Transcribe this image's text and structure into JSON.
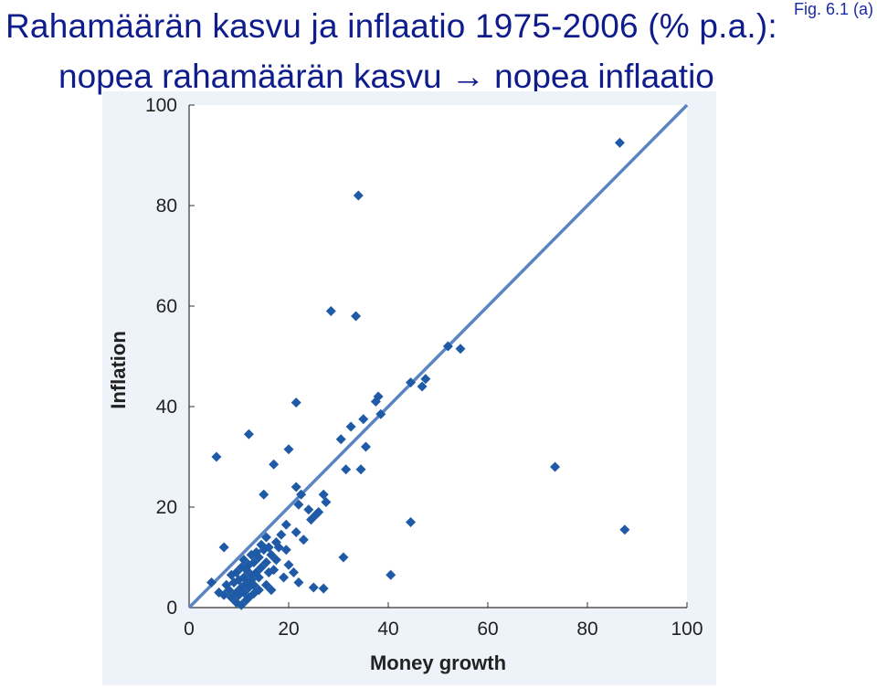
{
  "header": {
    "fig_label": "Fig. 6.1 (a)",
    "title_line1": "Rahamäärän kasvu ja inflaatio 1975-2006 (% p.a.):",
    "title_line2": "nopea rahamäärän kasvu → nopea inflaatio"
  },
  "colors": {
    "title": "#0e1c8c",
    "points": "#1f5aa6",
    "line": "#5b84c2",
    "panel": "#eef3fa"
  },
  "chart_data": {
    "type": "scatter",
    "title": "",
    "xlabel": "Money growth",
    "ylabel": "Inflation",
    "xlim": [
      0,
      100
    ],
    "ylim": [
      0,
      100
    ],
    "xticks": [
      0,
      20,
      40,
      60,
      80,
      100
    ],
    "yticks": [
      0,
      20,
      40,
      60,
      80,
      100
    ],
    "grid": false,
    "reference_line": {
      "from": [
        0,
        0
      ],
      "to": [
        100,
        100
      ]
    },
    "points": [
      {
        "x": 86.5,
        "y": 92.5
      },
      {
        "x": 34.0,
        "y": 82.0
      },
      {
        "x": 28.5,
        "y": 59.0
      },
      {
        "x": 33.5,
        "y": 58.0
      },
      {
        "x": 52.0,
        "y": 52.0
      },
      {
        "x": 54.5,
        "y": 51.5
      },
      {
        "x": 44.5,
        "y": 44.8
      },
      {
        "x": 47.5,
        "y": 45.5
      },
      {
        "x": 46.8,
        "y": 44.0
      },
      {
        "x": 38.0,
        "y": 42.0
      },
      {
        "x": 37.5,
        "y": 41.0
      },
      {
        "x": 21.5,
        "y": 40.8
      },
      {
        "x": 38.5,
        "y": 38.5
      },
      {
        "x": 35.0,
        "y": 37.5
      },
      {
        "x": 32.5,
        "y": 36.0
      },
      {
        "x": 12.0,
        "y": 34.5
      },
      {
        "x": 30.5,
        "y": 33.5
      },
      {
        "x": 35.5,
        "y": 32.0
      },
      {
        "x": 20.0,
        "y": 31.5
      },
      {
        "x": 5.5,
        "y": 30.0
      },
      {
        "x": 17.0,
        "y": 28.5
      },
      {
        "x": 31.5,
        "y": 27.5
      },
      {
        "x": 34.5,
        "y": 27.5
      },
      {
        "x": 73.5,
        "y": 28.0
      },
      {
        "x": 21.5,
        "y": 24.0
      },
      {
        "x": 22.5,
        "y": 22.5
      },
      {
        "x": 15.0,
        "y": 22.5
      },
      {
        "x": 27.0,
        "y": 22.5
      },
      {
        "x": 27.5,
        "y": 21.0
      },
      {
        "x": 22.0,
        "y": 20.5
      },
      {
        "x": 24.0,
        "y": 19.5
      },
      {
        "x": 26.0,
        "y": 19.0
      },
      {
        "x": 25.5,
        "y": 18.5
      },
      {
        "x": 24.5,
        "y": 17.5
      },
      {
        "x": 44.5,
        "y": 17.0
      },
      {
        "x": 19.5,
        "y": 16.5
      },
      {
        "x": 87.5,
        "y": 15.5
      },
      {
        "x": 21.5,
        "y": 15.0
      },
      {
        "x": 18.5,
        "y": 14.5
      },
      {
        "x": 15.5,
        "y": 14.0
      },
      {
        "x": 23.0,
        "y": 13.5
      },
      {
        "x": 17.5,
        "y": 13.0
      },
      {
        "x": 14.5,
        "y": 12.5
      },
      {
        "x": 16.0,
        "y": 12.0
      },
      {
        "x": 7.0,
        "y": 12.0
      },
      {
        "x": 18.0,
        "y": 12.0
      },
      {
        "x": 15.0,
        "y": 11.5
      },
      {
        "x": 19.5,
        "y": 11.5
      },
      {
        "x": 13.5,
        "y": 11.0
      },
      {
        "x": 16.5,
        "y": 10.5
      },
      {
        "x": 12.5,
        "y": 10.5
      },
      {
        "x": 14.0,
        "y": 10.0
      },
      {
        "x": 31.0,
        "y": 10.0
      },
      {
        "x": 17.5,
        "y": 9.5
      },
      {
        "x": 11.0,
        "y": 9.5
      },
      {
        "x": 15.5,
        "y": 9.0
      },
      {
        "x": 13.0,
        "y": 9.0
      },
      {
        "x": 20.0,
        "y": 8.5
      },
      {
        "x": 12.0,
        "y": 8.5
      },
      {
        "x": 14.5,
        "y": 8.0
      },
      {
        "x": 10.5,
        "y": 8.0
      },
      {
        "x": 17.0,
        "y": 7.5
      },
      {
        "x": 11.5,
        "y": 7.5
      },
      {
        "x": 13.5,
        "y": 7.0
      },
      {
        "x": 9.5,
        "y": 7.0
      },
      {
        "x": 16.0,
        "y": 7.0
      },
      {
        "x": 21.0,
        "y": 7.0
      },
      {
        "x": 12.5,
        "y": 6.5
      },
      {
        "x": 40.5,
        "y": 6.5
      },
      {
        "x": 8.5,
        "y": 6.5
      },
      {
        "x": 11.0,
        "y": 6.0
      },
      {
        "x": 14.0,
        "y": 6.0
      },
      {
        "x": 19.0,
        "y": 6.0
      },
      {
        "x": 10.0,
        "y": 5.5
      },
      {
        "x": 12.5,
        "y": 5.5
      },
      {
        "x": 4.5,
        "y": 5.0
      },
      {
        "x": 22.0,
        "y": 5.0
      },
      {
        "x": 9.0,
        "y": 5.0
      },
      {
        "x": 11.5,
        "y": 4.8
      },
      {
        "x": 13.0,
        "y": 4.5
      },
      {
        "x": 15.5,
        "y": 4.5
      },
      {
        "x": 7.5,
        "y": 4.5
      },
      {
        "x": 10.5,
        "y": 4.0
      },
      {
        "x": 25.0,
        "y": 4.0
      },
      {
        "x": 27.0,
        "y": 3.8
      },
      {
        "x": 12.0,
        "y": 4.0
      },
      {
        "x": 8.0,
        "y": 3.5
      },
      {
        "x": 16.5,
        "y": 3.5
      },
      {
        "x": 14.0,
        "y": 3.5
      },
      {
        "x": 6.0,
        "y": 3.0
      },
      {
        "x": 11.0,
        "y": 3.0
      },
      {
        "x": 9.5,
        "y": 3.0
      },
      {
        "x": 13.0,
        "y": 2.8
      },
      {
        "x": 7.0,
        "y": 2.5
      },
      {
        "x": 10.0,
        "y": 2.5
      },
      {
        "x": 12.0,
        "y": 2.0
      },
      {
        "x": 8.5,
        "y": 2.0
      },
      {
        "x": 11.5,
        "y": 1.5
      },
      {
        "x": 9.5,
        "y": 1.0
      },
      {
        "x": 10.5,
        "y": 0.5
      }
    ]
  }
}
